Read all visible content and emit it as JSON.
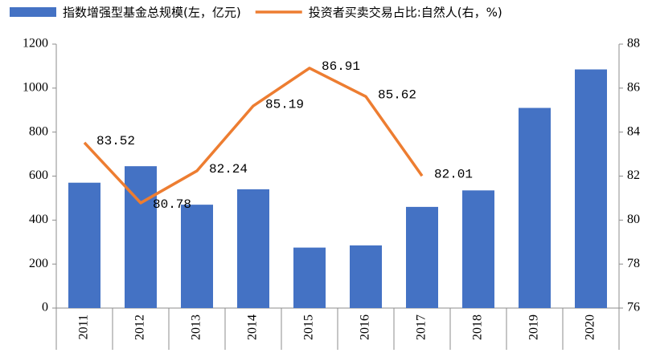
{
  "chart_data": {
    "type": "bar",
    "categories": [
      "2011",
      "2012",
      "2013",
      "2014",
      "2015",
      "2016",
      "2017",
      "2018",
      "2019",
      "2020"
    ],
    "series": [
      {
        "name": "指数增强型基金总规模(左，亿元)",
        "type": "bar",
        "color": "#4472c4",
        "values": [
          570,
          645,
          470,
          540,
          275,
          285,
          460,
          535,
          910,
          1085
        ]
      },
      {
        "name": "投资者买卖交易占比:自然人(右，%)",
        "type": "line",
        "axis": "y2",
        "color": "#ed7d31",
        "values": [
          83.52,
          80.78,
          82.24,
          85.19,
          86.91,
          85.62,
          82.01,
          null,
          null,
          null
        ]
      }
    ],
    "ylim": [
      0,
      1200
    ],
    "yticks": [
      0,
      200,
      400,
      600,
      800,
      1000,
      1200
    ],
    "y2lim": [
      76,
      88
    ],
    "y2ticks": [
      76,
      78,
      80,
      82,
      84,
      86,
      88
    ],
    "legend": "top",
    "data_labels": true
  }
}
